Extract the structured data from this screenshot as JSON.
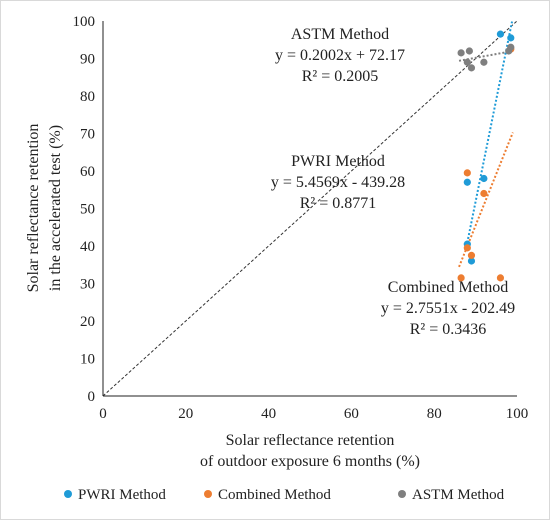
{
  "chart_data": {
    "type": "scatter",
    "xlabel": [
      "Solar reflectance retention",
      "of outdoor exposure 6 months (%)"
    ],
    "ylabel": [
      "Solar reflectance retention",
      "in the accelerated test (%)"
    ],
    "xlim": [
      0,
      100
    ],
    "ylim": [
      0,
      100
    ],
    "x_ticks": [
      "0",
      "20",
      "40",
      "60",
      "80",
      "100"
    ],
    "y_ticks": [
      "0",
      "10",
      "20",
      "30",
      "40",
      "50",
      "60",
      "70",
      "80",
      "90",
      "100"
    ],
    "grid": false,
    "legend_position": "bottom",
    "reference_line": {
      "style": "dashed",
      "from": [
        0,
        0
      ],
      "to": [
        100,
        100
      ]
    },
    "series": [
      {
        "name": "PWRI Method",
        "color": "#1f9bd7",
        "points": [
          [
            88,
            40.5
          ],
          [
            89,
            36
          ],
          [
            88,
            57
          ],
          [
            92,
            58
          ],
          [
            96,
            96.5
          ],
          [
            98.5,
            95.5
          ]
        ],
        "trendline": {
          "x": [
            87.6,
            98.8
          ]
        },
        "annotation": [
          "PWRI Method",
          "y = 5.4569x - 439.28",
          "R² = 0.8771"
        ]
      },
      {
        "name": "Combined Method",
        "color": "#ed7d31",
        "points": [
          [
            86.5,
            31.5
          ],
          [
            88,
            59.5
          ],
          [
            88,
            39.5
          ],
          [
            89,
            37.5
          ],
          [
            92,
            54
          ],
          [
            96,
            31.5
          ],
          [
            98.5,
            92.5
          ]
        ],
        "trendline": {
          "x": [
            86,
            99
          ]
        },
        "annotation": [
          "Combined Method",
          "y = 2.7551x - 202.49",
          "R² = 0.3436"
        ]
      },
      {
        "name": "ASTM Method",
        "color": "#7f7f7f",
        "points": [
          [
            86.5,
            91.5
          ],
          [
            88,
            89
          ],
          [
            88.5,
            92
          ],
          [
            89,
            87.5
          ],
          [
            92,
            89
          ],
          [
            98,
            92
          ],
          [
            98.5,
            93
          ]
        ],
        "trendline": {
          "x": [
            86,
            99
          ]
        },
        "annotation": [
          "ASTM Method",
          "y = 0.2002x + 72.17",
          "R² = 0.2005"
        ]
      }
    ]
  }
}
